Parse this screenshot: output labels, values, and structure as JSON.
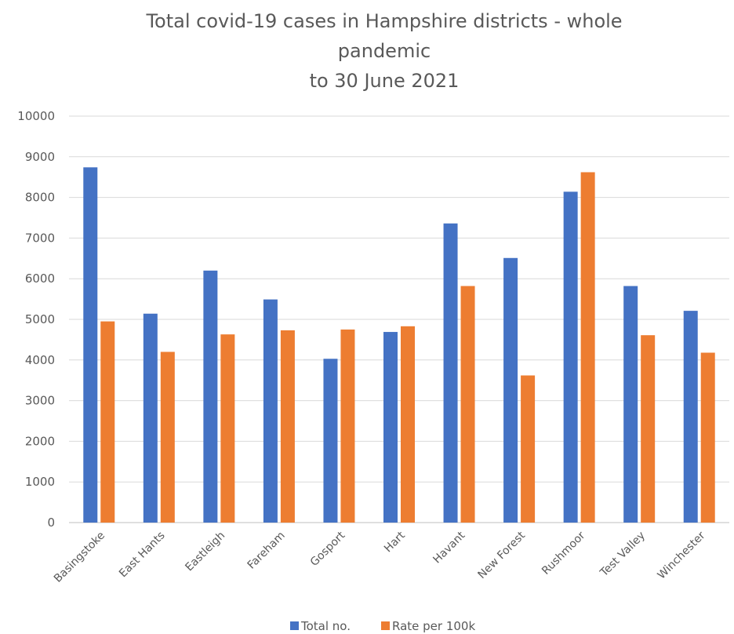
{
  "chart_data": {
    "type": "bar",
    "title_lines": [
      "Total covid-19 cases in Hampshire districts - whole",
      "pandemic",
      "to 30 June 2021"
    ],
    "categories": [
      "Basingstoke",
      "East Hants",
      "Eastleigh",
      "Fareham",
      "Gosport",
      "Hart",
      "Havant",
      "New Forest",
      "Rushmoor",
      "Test Valley",
      "Winchester"
    ],
    "series": [
      {
        "name": "Total no.",
        "color": "#4472C4",
        "values": [
          8740,
          5140,
          6200,
          5490,
          4030,
          4690,
          7360,
          6510,
          8140,
          5820,
          5210
        ]
      },
      {
        "name": "Rate per 100k",
        "color": "#ED7D31",
        "values": [
          4950,
          4200,
          4630,
          4730,
          4750,
          4830,
          5820,
          3620,
          8620,
          4610,
          4180
        ]
      }
    ],
    "ylim": [
      0,
      10000
    ],
    "yticks": [
      "0",
      "1000",
      "2000",
      "3000",
      "4000",
      "5000",
      "6000",
      "7000",
      "8000",
      "9000",
      "10000"
    ],
    "xlabel": "",
    "ylabel": "",
    "grid": true,
    "legend_position": "bottom"
  }
}
